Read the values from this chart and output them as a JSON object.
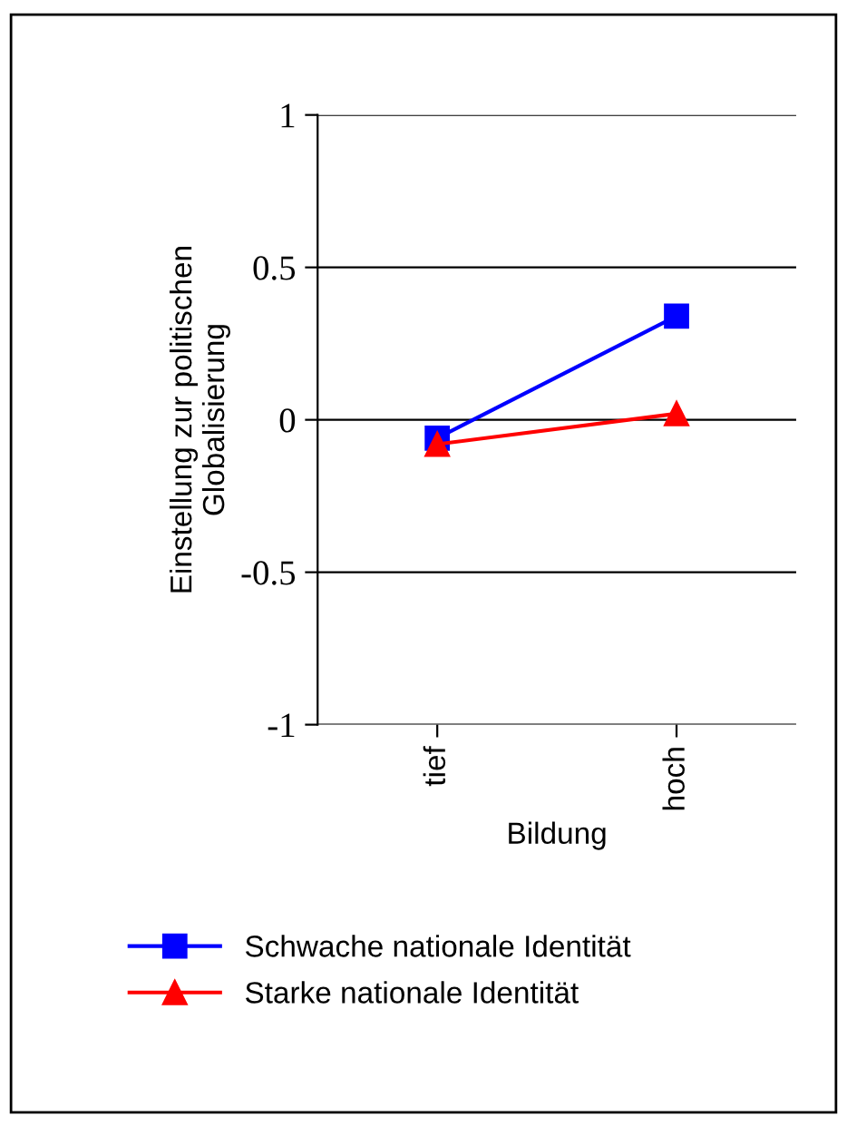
{
  "chart_data": {
    "type": "line",
    "xlabel": "Bildung",
    "ylabel": "Einstellung zur politischen\nGlobalisierung",
    "categories": [
      "tief",
      "hoch"
    ],
    "series": [
      {
        "name": "Schwache nationale Identität",
        "color": "#0000ff",
        "marker": "square",
        "values": [
          -0.06,
          0.34
        ]
      },
      {
        "name": "Starke nationale Identität",
        "color": "#ff0000",
        "marker": "triangle",
        "values": [
          -0.08,
          0.02
        ]
      }
    ],
    "ylim": [
      -1,
      1
    ],
    "yticks": [
      {
        "value": -1,
        "label": "-1"
      },
      {
        "value": -0.5,
        "label": "-0.5"
      },
      0,
      0.5,
      1
    ],
    "grid": "y",
    "legend": "bottom",
    "line_style": "solid"
  }
}
